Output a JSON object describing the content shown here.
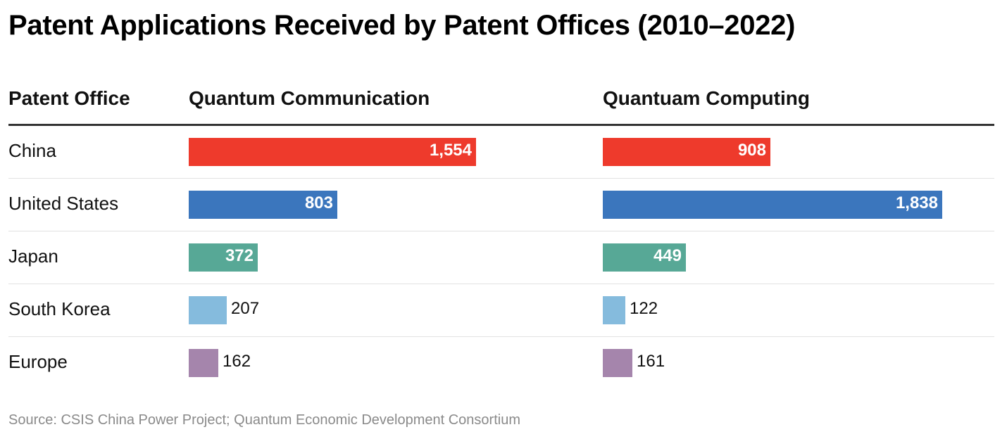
{
  "title": "Patent Applications Received by Patent Offices (2010–2022)",
  "source": "Source: CSIS China Power Project; Quantum Economic Development Consortium",
  "columns": {
    "office": "Patent Office",
    "comm": "Quantum Communication",
    "comp": "Quantuam Computing"
  },
  "chart_data": {
    "type": "bar",
    "categories": [
      "China",
      "United States",
      "Japan",
      "South Korea",
      "Europe"
    ],
    "colors": [
      "#ee3a2c",
      "#3b76bd",
      "#57a896",
      "#85bbdd",
      "#a585ac"
    ],
    "series": [
      {
        "name": "Quantum Communication",
        "values": [
          1554,
          803,
          372,
          207,
          162
        ],
        "labels": [
          "1,554",
          "803",
          "372",
          "207",
          "162"
        ]
      },
      {
        "name": "Quantuam Computing",
        "values": [
          908,
          1838,
          449,
          122,
          161
        ],
        "labels": [
          "908",
          "1,838",
          "449",
          "122",
          "161"
        ]
      }
    ]
  }
}
